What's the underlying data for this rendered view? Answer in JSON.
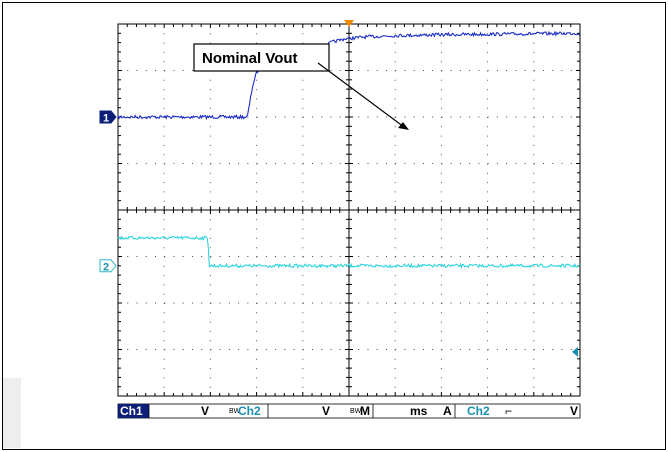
{
  "chart_data": {
    "type": "line",
    "grid": true,
    "x_divisions": 10,
    "y_divisions": 8,
    "series": [
      {
        "name": "Ch1",
        "color": "#1c2dc4",
        "marker": "1",
        "baseline_div": 2.0,
        "points": [
          [
            0,
            2.0
          ],
          [
            1,
            2.0
          ],
          [
            2,
            2.0
          ],
          [
            2.8,
            2.0
          ],
          [
            2.85,
            2.3
          ],
          [
            2.92,
            2.7
          ],
          [
            3.0,
            2.95
          ],
          [
            3.1,
            3.1
          ],
          [
            3.3,
            3.2
          ],
          [
            3.6,
            3.22
          ],
          [
            4.2,
            3.25
          ],
          [
            4.4,
            3.45
          ],
          [
            4.6,
            3.6
          ],
          [
            4.9,
            3.68
          ],
          [
            5.3,
            3.72
          ],
          [
            6,
            3.75
          ],
          [
            7,
            3.77
          ],
          [
            8,
            3.78
          ],
          [
            9,
            3.79
          ],
          [
            10,
            3.8
          ]
        ]
      },
      {
        "name": "Ch2",
        "color": "#2fd3df",
        "marker": "2",
        "baseline_div": -1.2,
        "points": [
          [
            0,
            -0.6
          ],
          [
            1,
            -0.6
          ],
          [
            1.95,
            -0.6
          ],
          [
            1.97,
            -1.2
          ],
          [
            3,
            -1.2
          ],
          [
            5,
            -1.2
          ],
          [
            7,
            -1.2
          ],
          [
            10,
            -1.2
          ]
        ]
      }
    ],
    "annotation": {
      "text": "Nominal Vout"
    },
    "status_bar": {
      "ch1_label": "Ch1",
      "ch1_unit": "V",
      "ch2_prefix": "BW",
      "ch2_label": "Ch2",
      "ch2_unit": "V",
      "time_prefix": "BW",
      "time_label": "M",
      "time_unit": "ms",
      "trig_label": "A",
      "trig_source": "Ch2",
      "trig_slope": "⌐",
      "trig_unit": "V"
    }
  }
}
